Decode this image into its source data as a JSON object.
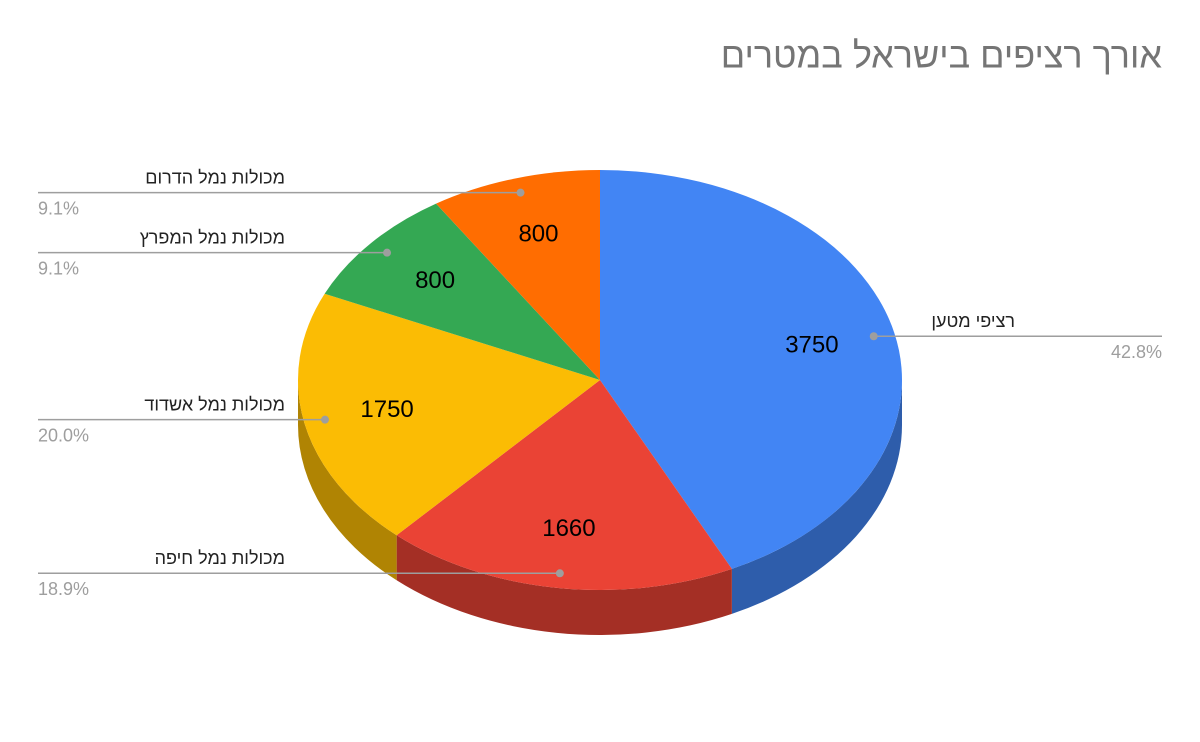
{
  "chart_data": {
    "type": "pie3d",
    "title": "אורך רציפים בישראל במטרים",
    "categories": [
      "רציפי מטען",
      "מכולות נמל חיפה",
      "מכולות נמל אשדוד",
      "מכולות נמל המפרץ",
      "מכולות נמל הדרום"
    ],
    "values": [
      3750,
      1660,
      1750,
      800,
      800
    ],
    "percent_labels": [
      "42.8%",
      "18.9%",
      "20.0%",
      "9.1%",
      "9.1%"
    ],
    "colors": [
      "#4285f4",
      "#ea4335",
      "#fbbc04",
      "#34a853",
      "#ff6d01"
    ]
  }
}
